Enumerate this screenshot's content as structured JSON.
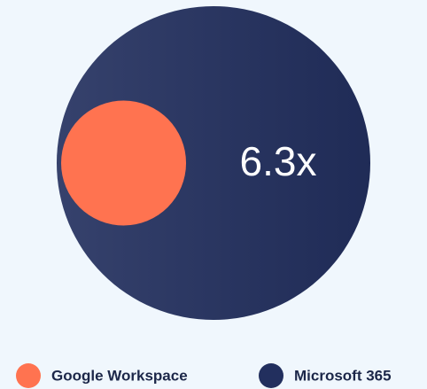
{
  "chart_data": {
    "type": "bubble",
    "series": [
      {
        "name": "Google Workspace",
        "color": "#ff7350",
        "value": 1
      },
      {
        "name": "Microsoft 365",
        "color": "#222f5e",
        "value": 6.3,
        "value_label": "6.3x"
      }
    ]
  }
}
